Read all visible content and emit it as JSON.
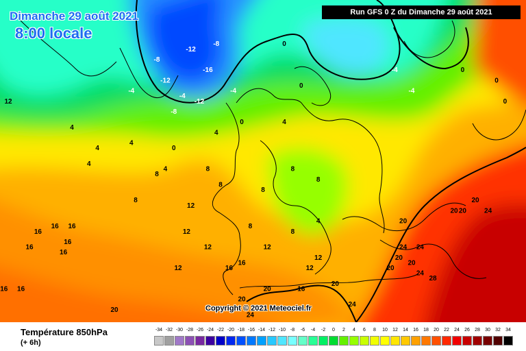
{
  "header": {
    "date_label": "Dimanche 29 août 2021",
    "time_label": "8:00 locale",
    "run_label": "Run GFS 0 Z du Dimanche 29 août 2021",
    "copyright": "Copyright © 2021 Meteociel.fr"
  },
  "footer": {
    "variable_title": "Température 850hPa",
    "forecast_step": "(+ 6h)"
  },
  "legend": {
    "ticks": [
      "-34",
      "-32",
      "-30",
      "-28",
      "-26",
      "-24",
      "-22",
      "-20",
      "-18",
      "-16",
      "-14",
      "-12",
      "-10",
      "-8",
      "-6",
      "-4",
      "-2",
      "0",
      "2",
      "4",
      "6",
      "8",
      "10",
      "12",
      "14",
      "16",
      "18",
      "20",
      "22",
      "24",
      "26",
      "28",
      "30",
      "32",
      "34"
    ],
    "colors": [
      "#c8c8c8",
      "#a0a0a0",
      "#a078c8",
      "#8c50b4",
      "#7828a0",
      "#3c00a0",
      "#0000c8",
      "#0028f0",
      "#0050ff",
      "#0078ff",
      "#00a0ff",
      "#28c8ff",
      "#50e6ff",
      "#78ffff",
      "#64ffc8",
      "#28ff96",
      "#00f064",
      "#00dc32",
      "#64f000",
      "#96ff00",
      "#c8ff00",
      "#f0ff00",
      "#ffff00",
      "#ffe600",
      "#ffc800",
      "#ffa000",
      "#ff7800",
      "#ff5000",
      "#ff2800",
      "#f00000",
      "#c80000",
      "#a00000",
      "#780000",
      "#500000",
      "#000000"
    ]
  },
  "map": {
    "isotherm_labels": [
      {
        "text": "-8",
        "lon": -20,
        "lat": 72
      },
      {
        "text": "-12",
        "lon": -12,
        "lat": 74
      },
      {
        "text": "-8",
        "lon": -6,
        "lat": 75
      },
      {
        "text": "-4",
        "lon": -26,
        "lat": 66
      },
      {
        "text": "-12",
        "lon": -18,
        "lat": 68
      },
      {
        "text": "-16",
        "lon": -8,
        "lat": 70
      },
      {
        "text": "-4",
        "lon": -14,
        "lat": 65
      },
      {
        "text": "-12",
        "lon": -10,
        "lat": 64
      },
      {
        "text": "-8",
        "lon": -16,
        "lat": 62
      },
      {
        "text": "-4",
        "lon": -2,
        "lat": 66
      },
      {
        "text": "0",
        "lon": 10,
        "lat": 75
      },
      {
        "text": "0",
        "lon": 14,
        "lat": 67
      },
      {
        "text": "-4",
        "lon": 36,
        "lat": 70
      },
      {
        "text": "-4",
        "lon": 40,
        "lat": 66
      },
      {
        "text": "0",
        "lon": 52,
        "lat": 70
      },
      {
        "text": "0",
        "lon": 60,
        "lat": 68
      },
      {
        "text": "0",
        "lon": 62,
        "lat": 64
      },
      {
        "text": "0",
        "lon": 0,
        "lat": 60
      },
      {
        "text": "4",
        "lon": 10,
        "lat": 60
      },
      {
        "text": "4",
        "lon": -40,
        "lat": 59
      },
      {
        "text": "12",
        "lon": -55,
        "lat": 64
      },
      {
        "text": "16",
        "lon": -63,
        "lat": 58
      },
      {
        "text": "4",
        "lon": -34,
        "lat": 55
      },
      {
        "text": "4",
        "lon": -36,
        "lat": 52
      },
      {
        "text": "4",
        "lon": -26,
        "lat": 56
      },
      {
        "text": "0",
        "lon": -16,
        "lat": 55
      },
      {
        "text": "4",
        "lon": -6,
        "lat": 58
      },
      {
        "text": "4",
        "lon": -18,
        "lat": 51
      },
      {
        "text": "8",
        "lon": -20,
        "lat": 50
      },
      {
        "text": "8",
        "lon": -8,
        "lat": 51
      },
      {
        "text": "8",
        "lon": -5,
        "lat": 48
      },
      {
        "text": "8",
        "lon": 12,
        "lat": 51
      },
      {
        "text": "8",
        "lon": 18,
        "lat": 49
      },
      {
        "text": "8",
        "lon": 5,
        "lat": 47
      },
      {
        "text": "8",
        "lon": -25,
        "lat": 45
      },
      {
        "text": "12",
        "lon": -12,
        "lat": 44
      },
      {
        "text": "12",
        "lon": -13,
        "lat": 39
      },
      {
        "text": "12",
        "lon": -8,
        "lat": 36
      },
      {
        "text": "12",
        "lon": -15,
        "lat": 32
      },
      {
        "text": "8",
        "lon": 2,
        "lat": 40
      },
      {
        "text": "4",
        "lon": 18,
        "lat": 41
      },
      {
        "text": "8",
        "lon": 12,
        "lat": 39
      },
      {
        "text": "12",
        "lon": 6,
        "lat": 36
      },
      {
        "text": "12",
        "lon": 16,
        "lat": 32
      },
      {
        "text": "12",
        "lon": 18,
        "lat": 34
      },
      {
        "text": "16",
        "lon": -48,
        "lat": 39
      },
      {
        "text": "16",
        "lon": -44,
        "lat": 40
      },
      {
        "text": "16",
        "lon": -40,
        "lat": 40
      },
      {
        "text": "16",
        "lon": -41,
        "lat": 37
      },
      {
        "text": "16",
        "lon": -58,
        "lat": 37
      },
      {
        "text": "16",
        "lon": -50,
        "lat": 36
      },
      {
        "text": "16",
        "lon": -42,
        "lat": 35
      },
      {
        "text": "16",
        "lon": -56,
        "lat": 28
      },
      {
        "text": "16",
        "lon": -52,
        "lat": 28
      },
      {
        "text": "16",
        "lon": -3,
        "lat": 32
      },
      {
        "text": "16",
        "lon": 0,
        "lat": 33
      },
      {
        "text": "16",
        "lon": 14,
        "lat": 28
      },
      {
        "text": "20",
        "lon": 6,
        "lat": 28
      },
      {
        "text": "20",
        "lon": 22,
        "lat": 29
      },
      {
        "text": "20",
        "lon": -30,
        "lat": 24
      },
      {
        "text": "20",
        "lon": 0,
        "lat": 26
      },
      {
        "text": "24",
        "lon": 26,
        "lat": 25
      },
      {
        "text": "24",
        "lon": 2,
        "lat": 23
      },
      {
        "text": "20",
        "lon": 38,
        "lat": 41
      },
      {
        "text": "24",
        "lon": 38,
        "lat": 36
      },
      {
        "text": "24",
        "lon": 42,
        "lat": 36
      },
      {
        "text": "20",
        "lon": 37,
        "lat": 34
      },
      {
        "text": "20",
        "lon": 40,
        "lat": 33
      },
      {
        "text": "20",
        "lon": 35,
        "lat": 32
      },
      {
        "text": "24",
        "lon": 42,
        "lat": 31
      },
      {
        "text": "28",
        "lon": 45,
        "lat": 30
      },
      {
        "text": "20",
        "lon": 55,
        "lat": 45
      },
      {
        "text": "20",
        "lon": 52,
        "lat": 43
      },
      {
        "text": "20",
        "lon": 50,
        "lat": 43
      },
      {
        "text": "24",
        "lon": 58,
        "lat": 43
      },
      {
        "text": "24",
        "lon": 70,
        "lat": 58
      }
    ]
  }
}
